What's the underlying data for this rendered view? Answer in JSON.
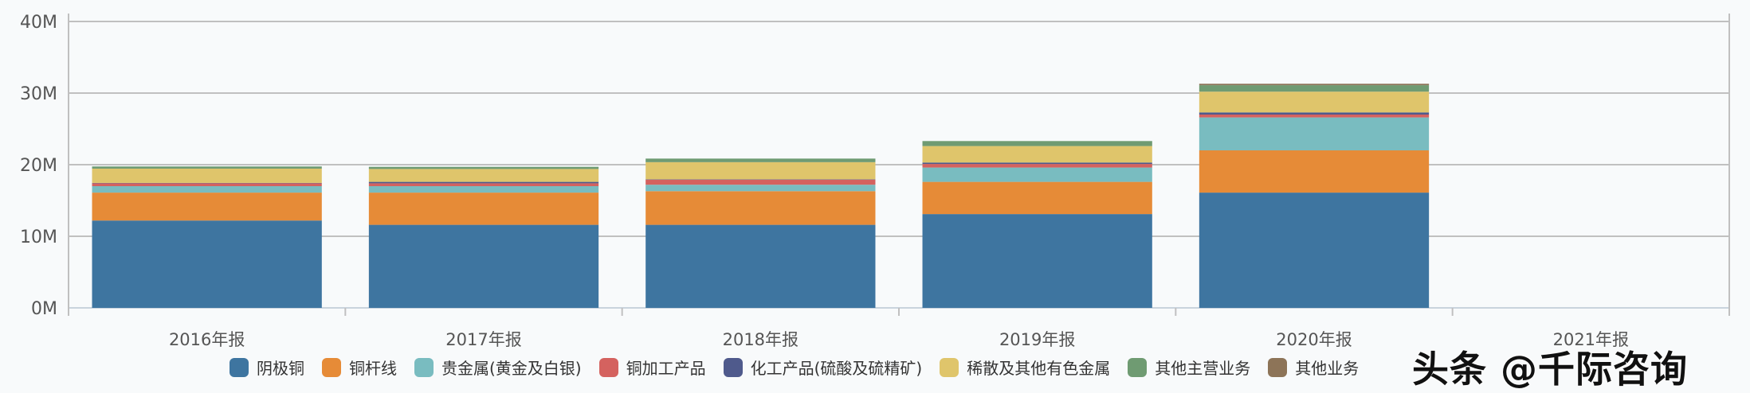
{
  "chart_data": {
    "type": "bar",
    "stacked": true,
    "categories": [
      "2016年报",
      "2017年报",
      "2018年报",
      "2019年报",
      "2020年报",
      "2021年报"
    ],
    "y_ticks": [
      "0M",
      "10M",
      "20M",
      "30M",
      "40M"
    ],
    "ylim": [
      0,
      40000000
    ],
    "grid": true,
    "legend": "bottom",
    "series": [
      {
        "name": "阴极铜",
        "color": "#3e75a0",
        "values": [
          12200000,
          11600000,
          11600000,
          13100000,
          16100000,
          null
        ]
      },
      {
        "name": "铜杆线",
        "color": "#e68b37",
        "values": [
          3900000,
          4500000,
          4700000,
          4500000,
          5900000,
          null
        ]
      },
      {
        "name": "贵金属(黄金及白银)",
        "color": "#79bcc0",
        "values": [
          900000,
          900000,
          900000,
          2000000,
          4600000,
          null
        ]
      },
      {
        "name": "铜加工产品",
        "color": "#d4625f",
        "values": [
          400000,
          400000,
          700000,
          500000,
          400000,
          null
        ]
      },
      {
        "name": "化工产品(硫酸及硫精矿)",
        "color": "#4f5a8c",
        "values": [
          50000,
          200000,
          50000,
          200000,
          300000,
          null
        ]
      },
      {
        "name": "稀散及其他有色金属",
        "color": "#dfc56b",
        "values": [
          2000000,
          1800000,
          2400000,
          2300000,
          2900000,
          null
        ]
      },
      {
        "name": "其他主营业务",
        "color": "#6f9b72",
        "values": [
          300000,
          300000,
          500000,
          700000,
          900000,
          null
        ]
      },
      {
        "name": "其他业务",
        "color": "#8d7458",
        "values": [
          0,
          0,
          0,
          0,
          200000,
          null
        ]
      }
    ]
  },
  "watermark": "头条 @千际咨询"
}
